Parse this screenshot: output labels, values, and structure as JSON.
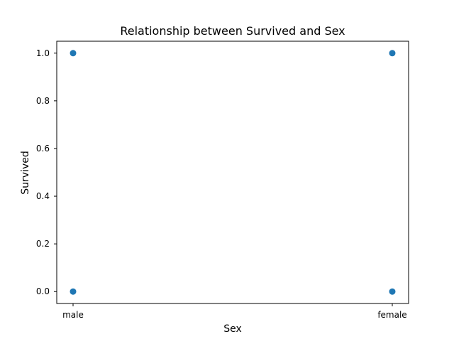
{
  "chart_data": {
    "type": "scatter",
    "title": "Relationship between Survived and Sex",
    "xlabel": "Sex",
    "ylabel": "Survived",
    "categories": [
      "male",
      "female"
    ],
    "points": [
      {
        "x": "male",
        "y": 0
      },
      {
        "x": "male",
        "y": 1
      },
      {
        "x": "female",
        "y": 0
      },
      {
        "x": "female",
        "y": 1
      }
    ],
    "yticks": [
      "0.0",
      "0.2",
      "0.4",
      "0.6",
      "0.8",
      "1.0"
    ],
    "ylim": [
      -0.05,
      1.05
    ],
    "grid": false,
    "legend": "none",
    "colors": {
      "marker": "#1f77b4",
      "axis": "#000000",
      "background": "#ffffff"
    }
  }
}
